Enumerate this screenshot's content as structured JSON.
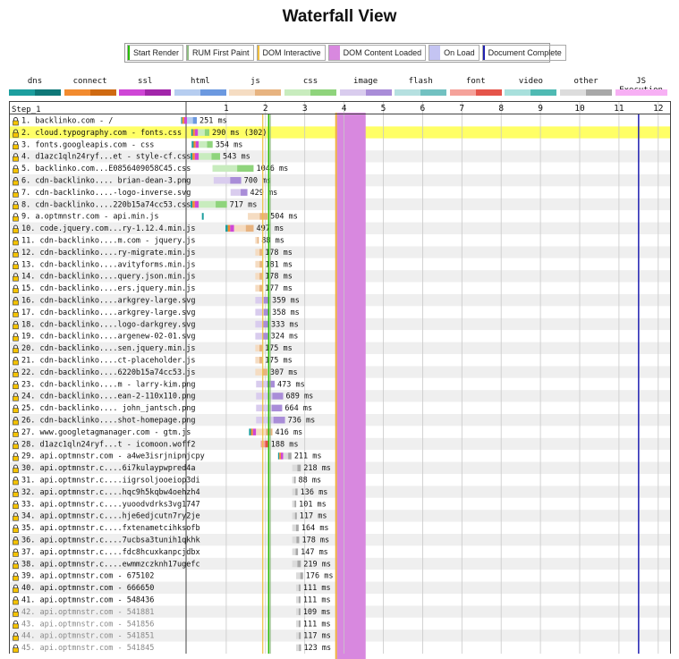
{
  "title": "Waterfall View",
  "legend": [
    {
      "label": "Start Render",
      "color": "#28bc00",
      "kind": "line"
    },
    {
      "label": "RUM First Paint",
      "color": "#8fbc83",
      "kind": "line"
    },
    {
      "label": "DOM Interactive",
      "color": "#f0c040",
      "kind": "line"
    },
    {
      "label": "DOM Content Loaded",
      "color": "#d888df",
      "kind": "block"
    },
    {
      "label": "On Load",
      "color": "#c4c4f2",
      "kind": "block"
    },
    {
      "label": "Document Complete",
      "color": "#2020b0",
      "kind": "line"
    }
  ],
  "types": [
    {
      "label": "dns",
      "color": "#1c9e9e",
      "dark": "#0f7878"
    },
    {
      "label": "connect",
      "color": "#f28b2f",
      "dark": "#cf6a12"
    },
    {
      "label": "ssl",
      "color": "#cf46d6",
      "dark": "#a226aa"
    },
    {
      "label": "html",
      "color": "#b6cdf0",
      "dark": "#6c99e0"
    },
    {
      "label": "js",
      "color": "#f5dcc2",
      "dark": "#e7b380"
    },
    {
      "label": "css",
      "color": "#c8ecbe",
      "dark": "#8fd47c"
    },
    {
      "label": "image",
      "color": "#d9ccee",
      "dark": "#a98dd8"
    },
    {
      "label": "flash",
      "color": "#b5e0e0",
      "dark": "#72c1c1"
    },
    {
      "label": "font",
      "color": "#f5a29a",
      "dark": "#e5544a"
    },
    {
      "label": "video",
      "color": "#a8e0dc",
      "dark": "#4fbab3"
    },
    {
      "label": "other",
      "color": "#dcdcdc",
      "dark": "#a8a8a8"
    },
    {
      "label": "JS Execution",
      "color": "#f7b0f4",
      "dark": "#f7b0f4"
    }
  ],
  "chart_data": {
    "type": "waterfall",
    "step_label": "Step_1",
    "x_unit": "seconds",
    "xlim": [
      0,
      12.3
    ],
    "ticks": [
      1,
      2,
      3,
      4,
      5,
      6,
      7,
      8,
      9,
      10,
      11,
      12
    ],
    "markers": {
      "start_render": 2.08,
      "rum_first_paint": 2.12,
      "dom_interactive": 1.93,
      "dom_content_loaded": [
        3.82,
        4.55
      ],
      "document_complete": 11.5
    },
    "requests": [
      {
        "n": 1,
        "label": "1. backlinko.com - /",
        "type": "html",
        "start": 0.0,
        "dur": 251,
        "duration": "251 ms",
        "pre": [
          [
            "dns",
            0.03
          ],
          [
            "connect",
            0.05
          ],
          [
            "ssl",
            0.07
          ]
        ]
      },
      {
        "n": 2,
        "label": "2. cloud.typography.com - fonts.css",
        "type": "css",
        "start": 0.28,
        "dur": 290,
        "duration": "290 ms (302)",
        "pre": [
          [
            "dns",
            0.04
          ],
          [
            "connect",
            0.05
          ],
          [
            "ssl",
            0.08
          ]
        ],
        "highlight": true
      },
      {
        "n": 3,
        "label": "3. fonts.googleapis.com - css",
        "type": "css",
        "start": 0.3,
        "dur": 354,
        "duration": "354 ms",
        "pre": [
          [
            "dns",
            0.05
          ],
          [
            "connect",
            0.05
          ],
          [
            "ssl",
            0.08
          ]
        ]
      },
      {
        "n": 4,
        "label": "4. d1azc1qln24ryf...et - style-cf.css",
        "type": "css",
        "start": 0.3,
        "dur": 543,
        "duration": "543 ms",
        "pre": [
          [
            "dns",
            0.05
          ],
          [
            "connect",
            0.06
          ],
          [
            "ssl",
            0.1
          ]
        ]
      },
      {
        "n": 5,
        "label": "5. backlinko.com...E0856409058C45.css",
        "type": "css",
        "start": 0.65,
        "dur": 1046,
        "duration": "1046 ms",
        "pre": []
      },
      {
        "n": 6,
        "label": "6. cdn-backlinko.... brian-dean-3.png",
        "type": "image",
        "start": 0.68,
        "dur": 700,
        "duration": "700 ms",
        "pre": []
      },
      {
        "n": 7,
        "label": "7. cdn-backlinko....-logo-inverse.svg",
        "type": "image",
        "start": 1.11,
        "dur": 429,
        "duration": "429 ms",
        "pre": []
      },
      {
        "n": 8,
        "label": "8. cdn-backlinko....220b15a74cc53.css",
        "type": "css",
        "start": 0.3,
        "dur": 717,
        "duration": "717 ms",
        "pre": [
          [
            "dns",
            0.05
          ],
          [
            "connect",
            0.06
          ],
          [
            "ssl",
            0.1
          ]
        ]
      },
      {
        "n": 9,
        "label": "9. a.optmnstr.com - api.min.js",
        "type": "js",
        "start": 1.55,
        "dur": 504,
        "duration": "504 ms",
        "pre": [],
        "orphan": [
          [
            0.38,
            0.11,
            "dns"
          ]
        ]
      },
      {
        "n": 10,
        "label": "10. code.jquery.com...ry-1.12.4.min.js",
        "type": "js",
        "start": 1.2,
        "dur": 497,
        "duration": "497 ms",
        "pre": [
          [
            "dns",
            0.06
          ],
          [
            "connect",
            0.06
          ],
          [
            "ssl",
            0.1
          ]
        ]
      },
      {
        "n": 11,
        "label": "11. cdn-backlinko....m.com - jquery.js",
        "type": "js",
        "start": 1.74,
        "dur": 88,
        "duration": "88 ms",
        "pre": []
      },
      {
        "n": 12,
        "label": "12. cdn-backlinko....ry-migrate.min.js",
        "type": "js",
        "start": 1.74,
        "dur": 178,
        "duration": "178 ms",
        "pre": []
      },
      {
        "n": 13,
        "label": "13. cdn-backlinko....avityforms.min.js",
        "type": "js",
        "start": 1.74,
        "dur": 181,
        "duration": "181 ms",
        "pre": []
      },
      {
        "n": 14,
        "label": "14. cdn-backlinko....query.json.min.js",
        "type": "js",
        "start": 1.74,
        "dur": 178,
        "duration": "178 ms",
        "pre": []
      },
      {
        "n": 15,
        "label": "15. cdn-backlinko....ers.jquery.min.js",
        "type": "js",
        "start": 1.74,
        "dur": 177,
        "duration": "177 ms",
        "pre": []
      },
      {
        "n": 16,
        "label": "16. cdn-backlinko....arkgrey-large.svg",
        "type": "image",
        "start": 1.74,
        "dur": 359,
        "duration": "359 ms",
        "pre": []
      },
      {
        "n": 17,
        "label": "17. cdn-backlinko....arkgrey-large.svg",
        "type": "image",
        "start": 1.74,
        "dur": 358,
        "duration": "358 ms",
        "pre": []
      },
      {
        "n": 18,
        "label": "18. cdn-backlinko....logo-darkgrey.svg",
        "type": "image",
        "start": 1.74,
        "dur": 333,
        "duration": "333 ms",
        "pre": []
      },
      {
        "n": 19,
        "label": "19. cdn-backlinko....argenew-02-01.svg",
        "type": "image",
        "start": 1.74,
        "dur": 324,
        "duration": "324 ms",
        "pre": []
      },
      {
        "n": 20,
        "label": "20. cdn-backlinko....sen.jquery.min.js",
        "type": "js",
        "start": 1.74,
        "dur": 175,
        "duration": "175 ms",
        "pre": []
      },
      {
        "n": 21,
        "label": "21. cdn-backlinko....ct-placeholder.js",
        "type": "js",
        "start": 1.74,
        "dur": 175,
        "duration": "175 ms",
        "pre": []
      },
      {
        "n": 22,
        "label": "22. cdn-backlinko....6220b15a74cc53.js",
        "type": "js",
        "start": 1.74,
        "dur": 307,
        "duration": "307 ms",
        "pre": []
      },
      {
        "n": 23,
        "label": "23. cdn-backlinko....m - larry-kim.png",
        "type": "image",
        "start": 1.76,
        "dur": 473,
        "duration": "473 ms",
        "pre": []
      },
      {
        "n": 24,
        "label": "24. cdn-backlinko....ean-2-110x110.png",
        "type": "image",
        "start": 1.76,
        "dur": 689,
        "duration": "689 ms",
        "pre": []
      },
      {
        "n": 25,
        "label": "25. cdn-backlinko.... john_jantsch.png",
        "type": "image",
        "start": 1.76,
        "dur": 664,
        "duration": "664 ms",
        "pre": []
      },
      {
        "n": 26,
        "label": "26. cdn-backlinko....shot-homepage.png",
        "type": "image",
        "start": 1.76,
        "dur": 736,
        "duration": "736 ms",
        "pre": []
      },
      {
        "n": 27,
        "label": "27. www.googletagmanager.com - gtm.js",
        "type": "js",
        "start": 1.76,
        "dur": 416,
        "duration": "416 ms",
        "pre": [
          [
            "dns",
            0.05
          ],
          [
            "connect",
            0.05
          ],
          [
            "ssl",
            0.08
          ]
        ]
      },
      {
        "n": 28,
        "label": "28. d1azc1qln24ryf...t - icomoon.woff2",
        "type": "font",
        "start": 1.88,
        "dur": 188,
        "duration": "188 ms",
        "pre": []
      },
      {
        "n": 29,
        "label": "29. api.optmnstr.com - a4we3isrjnipnjcpy",
        "type": "other",
        "start": 2.45,
        "dur": 211,
        "duration": "211 ms",
        "pre": [
          [
            "dns",
            0.03
          ],
          [
            "connect",
            0.04
          ],
          [
            "ssl",
            0.06
          ]
        ]
      },
      {
        "n": 30,
        "label": "30. api.optmnstr.c....6i7kulaypwpred4a",
        "type": "other",
        "start": 2.68,
        "dur": 218,
        "duration": "218 ms",
        "pre": []
      },
      {
        "n": 31,
        "label": "31. api.optmnstr.c....iigrsoljooeiop3di",
        "type": "other",
        "start": 2.68,
        "dur": 88,
        "duration": "88 ms",
        "pre": []
      },
      {
        "n": 32,
        "label": "32. api.optmnstr.c....hqc9h5kqbw4oehzh4",
        "type": "other",
        "start": 2.68,
        "dur": 136,
        "duration": "136 ms",
        "pre": []
      },
      {
        "n": 33,
        "label": "33. api.optmnstr.c....yuoodvdrks3vg1747",
        "type": "other",
        "start": 2.68,
        "dur": 101,
        "duration": "101 ms",
        "pre": []
      },
      {
        "n": 34,
        "label": "34. api.optmnstr.c....hje6edjcutn7ry2je",
        "type": "other",
        "start": 2.68,
        "dur": 117,
        "duration": "117 ms",
        "pre": []
      },
      {
        "n": 35,
        "label": "35. api.optmnstr.c....fxtenametcihksofb",
        "type": "other",
        "start": 2.68,
        "dur": 164,
        "duration": "164 ms",
        "pre": []
      },
      {
        "n": 36,
        "label": "36. api.optmnstr.c....7ucbsa3tunih1qkhk",
        "type": "other",
        "start": 2.68,
        "dur": 178,
        "duration": "178 ms",
        "pre": []
      },
      {
        "n": 37,
        "label": "37. api.optmnstr.c....fdc8hcuxkanpcjdbx",
        "type": "other",
        "start": 2.68,
        "dur": 147,
        "duration": "147 ms",
        "pre": []
      },
      {
        "n": 38,
        "label": "38. api.optmnstr.c....ewmmzczknh17ugefc",
        "type": "other",
        "start": 2.68,
        "dur": 219,
        "duration": "219 ms",
        "pre": []
      },
      {
        "n": 39,
        "label": "39. api.optmnstr.com - 675102",
        "type": "other",
        "start": 2.78,
        "dur": 176,
        "duration": "176 ms",
        "pre": []
      },
      {
        "n": 40,
        "label": "40. api.optmnstr.com - 666650",
        "type": "other",
        "start": 2.78,
        "dur": 111,
        "duration": "111 ms",
        "pre": []
      },
      {
        "n": 41,
        "label": "41. api.optmnstr.com - 548436",
        "type": "other",
        "start": 2.78,
        "dur": 111,
        "duration": "111 ms",
        "pre": []
      },
      {
        "n": 42,
        "label": "42. api.optmnstr.com - 541881",
        "type": "other",
        "start": 2.78,
        "dur": 109,
        "duration": "109 ms",
        "pre": [],
        "dim": true
      },
      {
        "n": 43,
        "label": "43. api.optmnstr.com - 541856",
        "type": "other",
        "start": 2.78,
        "dur": 111,
        "duration": "111 ms",
        "pre": [],
        "dim": true
      },
      {
        "n": 44,
        "label": "44. api.optmnstr.com - 541851",
        "type": "other",
        "start": 2.78,
        "dur": 117,
        "duration": "117 ms",
        "pre": [],
        "dim": true
      },
      {
        "n": 45,
        "label": "45. api.optmnstr.com - 541845",
        "type": "other",
        "start": 2.78,
        "dur": 123,
        "duration": "123 ms",
        "pre": [],
        "dim": true
      }
    ]
  }
}
